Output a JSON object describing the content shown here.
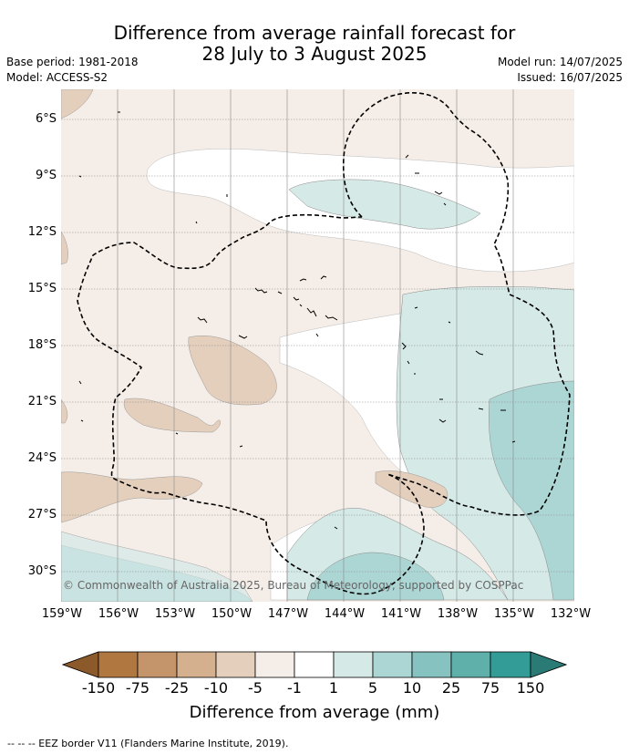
{
  "title_line1": "Difference from average rainfall forecast for",
  "title_line2": "28 July to 3 August 2025",
  "base_period": "Base period: 1981-2018",
  "model": "Model: ACCESS-S2",
  "model_run": "Model run: 14/07/2025",
  "issued": "Issued: 16/07/2025",
  "lat_ticks": [
    "6°S",
    "9°S",
    "12°S",
    "15°S",
    "18°S",
    "21°S",
    "24°S",
    "27°S",
    "30°S"
  ],
  "lon_ticks": [
    "159°W",
    "156°W",
    "153°W",
    "150°W",
    "147°W",
    "144°W",
    "141°W",
    "138°W",
    "135°W",
    "132°W"
  ],
  "copyright": "© Commonwealth of Australia 2025, Bureau of Meteorology, supported by COSPPac",
  "colorbar": {
    "labels": [
      "-150",
      "-75",
      "-25",
      "-10",
      "-5",
      "-1",
      "1",
      "5",
      "10",
      "25",
      "75",
      "150"
    ],
    "colors": [
      "#8c5a2a",
      "#b07840",
      "#c4956a",
      "#d4b08e",
      "#e4cfbc",
      "#f5ede7",
      "#ffffff",
      "#d5e9e7",
      "#acd6d4",
      "#86c3c0",
      "#5fb0ab",
      "#349c96",
      "#2a7a76"
    ],
    "title": "Difference from average (mm)"
  },
  "footer": "--  --  -- EEZ border V11 (Flanders Marine Institute, 2019)."
}
